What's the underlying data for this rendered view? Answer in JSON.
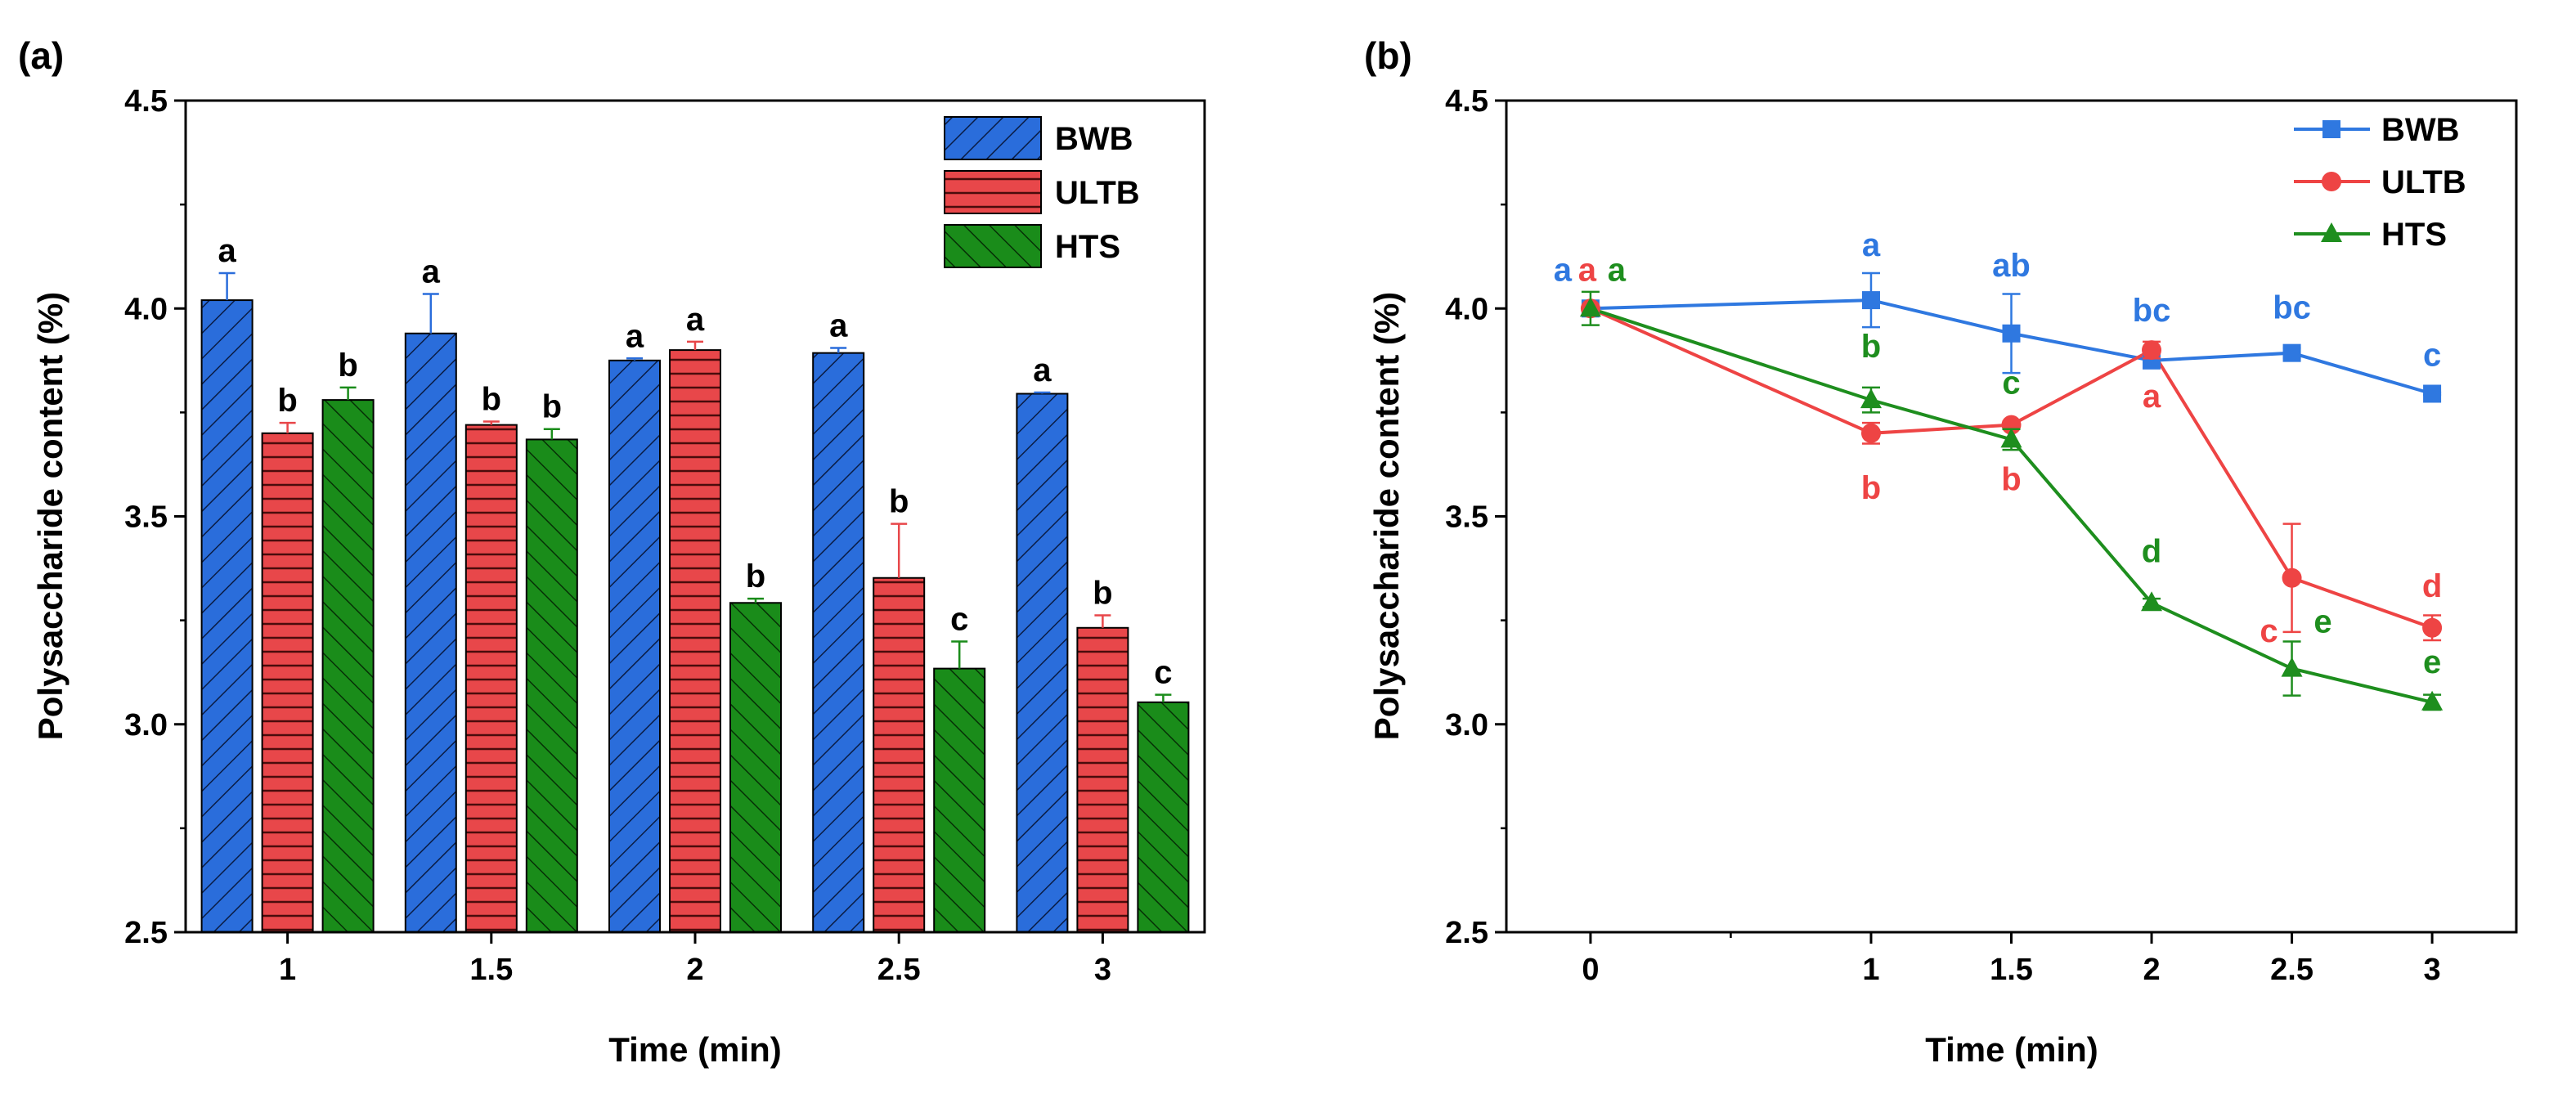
{
  "figure": {
    "panels": [
      "(a)",
      "(b)"
    ]
  },
  "colors": {
    "BWB": "#2a6ddb",
    "ULTB": "#e8474a",
    "HTS": "#1a8c1a",
    "BWB_line": "#2f78e0",
    "ULTB_line": "#ee4444",
    "HTS_line": "#1e8e1e"
  },
  "chart_data": [
    {
      "panel": "(a)",
      "type": "bar",
      "title": "",
      "xlabel": "Time (min)",
      "ylabel": "Polysaccharide content (%)",
      "ylim": [
        2.5,
        4.5
      ],
      "yticks": [
        "2.5",
        "3.0",
        "3.5",
        "4.0",
        "4.5"
      ],
      "categories": [
        "1",
        "1.5",
        "2",
        "2.5",
        "3"
      ],
      "legend_position": "top-right",
      "series": [
        {
          "name": "BWB",
          "values": [
            4.02,
            3.94,
            3.875,
            3.893,
            3.795
          ],
          "errors": [
            0.065,
            0.095,
            0.005,
            0.012,
            0.003
          ],
          "letters": [
            "a",
            "a",
            "a",
            "a",
            "a"
          ],
          "pattern": "diagonal-forward"
        },
        {
          "name": "ULTB",
          "values": [
            3.7,
            3.72,
            3.9,
            3.352,
            3.232
          ],
          "errors": [
            0.025,
            0.008,
            0.02,
            0.13,
            0.03
          ],
          "letters": [
            "b",
            "b",
            "a",
            "b",
            "b"
          ],
          "pattern": "horizontal"
        },
        {
          "name": "HTS",
          "values": [
            3.78,
            3.685,
            3.292,
            3.134,
            3.053
          ],
          "errors": [
            0.03,
            0.025,
            0.01,
            0.065,
            0.018
          ],
          "letters": [
            "b",
            "b",
            "b",
            "c",
            "c"
          ],
          "pattern": "diagonal-backward"
        }
      ]
    },
    {
      "panel": "(b)",
      "type": "line",
      "title": "",
      "xlabel": "Time (min)",
      "ylabel": "Polysaccharide content (%)",
      "ylim": [
        2.5,
        4.5
      ],
      "xlim": [
        -0.3,
        3.3
      ],
      "yticks": [
        "2.5",
        "3.0",
        "3.5",
        "4.0",
        "4.5"
      ],
      "x": [
        0,
        1,
        1.5,
        2,
        2.5,
        3
      ],
      "xticks": [
        "0",
        "1",
        "1.5",
        "2",
        "2.5",
        "3"
      ],
      "legend_position": "top-right",
      "series": [
        {
          "name": "BWB",
          "marker": "square",
          "values": [
            4.0,
            4.02,
            3.94,
            3.875,
            3.893,
            3.795
          ],
          "errors": [
            0.0,
            0.065,
            0.095,
            0.005,
            0.012,
            0.003
          ],
          "letters": [
            "a",
            "a",
            "ab",
            "bc",
            "bc",
            "c"
          ]
        },
        {
          "name": "ULTB",
          "marker": "circle",
          "values": [
            4.0,
            3.7,
            3.72,
            3.9,
            3.352,
            3.232
          ],
          "errors": [
            0.0,
            0.025,
            0.008,
            0.02,
            0.13,
            0.03
          ],
          "letters": [
            "a",
            "b",
            "b",
            "a",
            "c",
            "d"
          ]
        },
        {
          "name": "HTS",
          "marker": "triangle",
          "values": [
            4.0,
            3.78,
            3.685,
            3.292,
            3.134,
            3.053
          ],
          "errors": [
            0.04,
            0.03,
            0.025,
            0.01,
            0.065,
            0.018
          ],
          "letters": [
            "a",
            "b",
            "c",
            "d",
            "e",
            "e"
          ]
        }
      ]
    }
  ]
}
